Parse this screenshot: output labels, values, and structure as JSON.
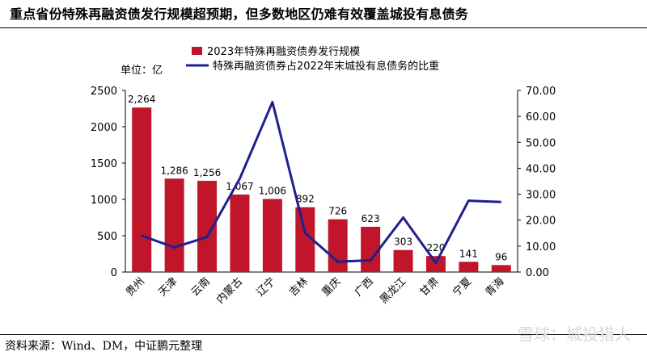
{
  "header": {
    "title": "重点省份特殊再融资债发行规模超预期，但多数地区仍难有效覆盖城投有息债务"
  },
  "footer": {
    "source": "资料来源：Wind、DM，中证鹏元整理",
    "watermark": "雪球：城投猎人"
  },
  "chart_data": {
    "type": "bar",
    "unit_label": "单位：亿",
    "categories": [
      "贵州",
      "天津",
      "云南",
      "内蒙古",
      "辽宁",
      "吉林",
      "重庆",
      "广西",
      "黑龙江",
      "甘肃",
      "宁夏",
      "青海"
    ],
    "series": [
      {
        "name": "2023年特殊再融资债券发行规模",
        "type": "bar",
        "axis": "left",
        "color": "#c0152a",
        "values": [
          2264,
          1286,
          1256,
          1067,
          1006,
          892,
          726,
          623,
          303,
          220,
          141,
          96
        ],
        "labels": [
          "2,264",
          "1,286",
          "1,256",
          "1,067",
          "1,006",
          "892",
          "726",
          "623",
          "303",
          "220",
          "141",
          "96"
        ]
      },
      {
        "name": "特殊再融资债券占2022年末城投有息债务的比重",
        "type": "line",
        "axis": "right",
        "color": "#1f1f8f",
        "values": [
          14.0,
          9.5,
          13.5,
          36.0,
          65.5,
          15.0,
          4.0,
          4.5,
          21.0,
          3.5,
          27.5,
          27.0
        ]
      }
    ],
    "y_left": {
      "min": 0,
      "max": 2500,
      "ticks": [
        "0",
        "500",
        "1000",
        "1500",
        "2000",
        "2500"
      ]
    },
    "y_right": {
      "min": 0,
      "max": 70,
      "ticks": [
        "0.00",
        "10.00",
        "20.00",
        "30.00",
        "40.00",
        "50.00",
        "60.00",
        "70.00"
      ]
    },
    "grid": false,
    "legend_position": "top"
  }
}
